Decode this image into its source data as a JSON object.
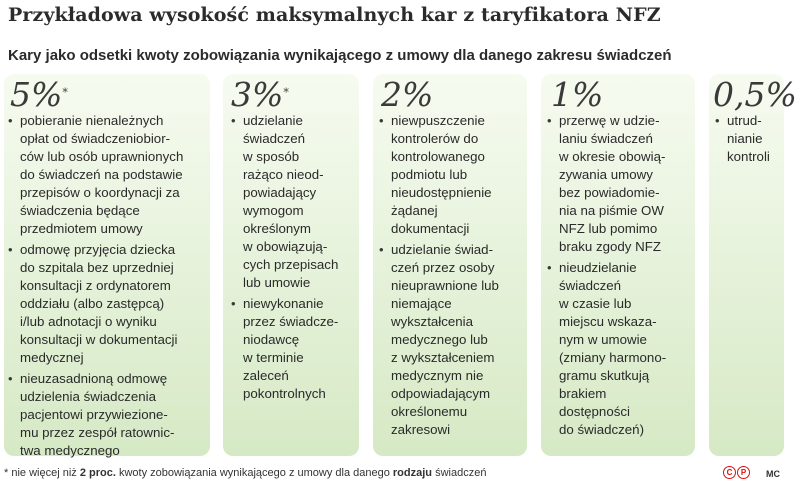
{
  "title": "Przykładowa wysokość maksymalnych kar z taryfikatora NFZ",
  "subtitle": "Kary jako odsetki kwoty zobowiązania wynikającego z umowy dla danego zakresu świadczeń",
  "columns": [
    {
      "percent": "5%",
      "footnote_mark": "*",
      "items": [
        "pobieranie nienależnych\nopłat od świadczeniobior-\nców lub osób uprawnionych\ndo świadczeń na podstawie\nprzepisów o koordynacji za\nświadczenia będące\nprzedmiotem umowy",
        "odmowę przyjęcia dziecka\ndo szpitala bez uprzedniej\nkonsultacji z ordynatorem\noddziału (albo zastępcą)\ni/lub adnotacji o wyniku\nkonsultacji w dokumentacji\nmedycznej",
        "nieuzasadnioną odmowę\nudzielenia świadczenia\npacjentowi przywiezione-\nmu przez zespół ratownic-\ntwa medycznego"
      ]
    },
    {
      "percent": "3%",
      "footnote_mark": "*",
      "items": [
        "udzielanie\nświadczeń\nw sposób\nrażąco nieod-\npowiadający\nwymogom\nokreślonym\nw obowiązują-\ncych przepisach\nlub umowie",
        "niewykonanie\nprzez świadcze-\nniodawcę\nw terminie\nzaleceń\npokontrolnych"
      ]
    },
    {
      "percent": "2%",
      "footnote_mark": "",
      "items": [
        "niewpuszczenie\nkontrolerów do\nkontrolowanego\npodmiotu lub\nnieudostępnienie\nżądanej\ndokumentacji",
        "udzielanie świad-\nczeń przez osoby\nnieuprawnione lub\nniemające\nwykształcenia\nmedycznego lub\nz wykształceniem\nmedycznym nie\nodpowiadającym\nokreślonemu\nzakresowi"
      ]
    },
    {
      "percent": "1%",
      "footnote_mark": "",
      "items": [
        "przerwę w udzie-\nlaniu świadczeń\nw okresie obowią-\nzywania umowy\nbez powiadomie-\nnia na piśmie OW\nNFZ lub pomimo\nbraku zgody NFZ",
        "nieudzielanie\nświadczeń\nw czasie lub\nmiejscu wskaza-\nnym w umowie\n(zmiany harmono-\ngramu skutkują\nbrakiem\ndostępności\ndo świadczeń)"
      ]
    },
    {
      "percent": "0,5%",
      "footnote_mark": "",
      "items": [
        "utrud-\nnianie\nkontroli"
      ]
    }
  ],
  "footnote": {
    "mark": "*",
    "part1": " nie więcej niż ",
    "bold1": "2 proc.",
    "part2": " kwoty zobowiązania wynikającego z umowy dla danego ",
    "bold2": "rodzaju",
    "part3": " świadczeń"
  },
  "copyright_letters": [
    "C",
    "P"
  ],
  "author": "MC",
  "colors": {
    "panel_top": "#f6fbf0",
    "panel_bottom": "#d6e9c5",
    "copyright": "#dd1111"
  }
}
